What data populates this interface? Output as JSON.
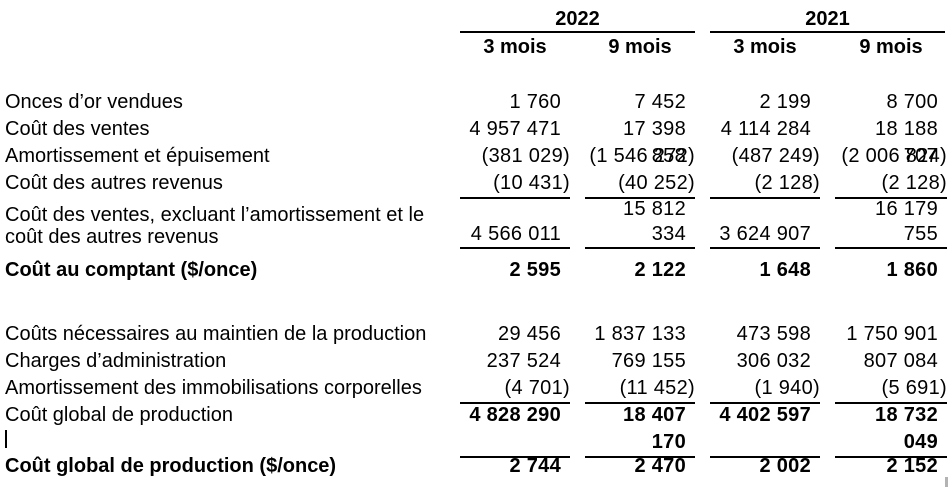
{
  "colors": {
    "text": "#000000",
    "background": "#ffffff",
    "rule": "#000000",
    "scrollbar_mark": "#b3b3b3"
  },
  "table": {
    "col_groups": [
      {
        "label": "2022"
      },
      {
        "label": "2021"
      }
    ],
    "sub_headers": [
      "3 mois",
      "9 mois",
      "3 mois",
      "9 mois"
    ],
    "rows": [
      {
        "label": "Onces d’or vendues",
        "values": [
          "1 760",
          "7 452",
          "2 199",
          "8 700"
        ]
      },
      {
        "label": "Coût des ventes",
        "values": [
          "4 957 471",
          "17 398 858",
          "4 114 284",
          "18 188 707"
        ]
      },
      {
        "label": "Amortissement et épuisement",
        "values": [
          "(381 029)",
          "(1 546 272)",
          "(487 249)",
          "(2 006 824)"
        ]
      },
      {
        "label": "Coût des autres revenus",
        "values": [
          "(10 431)",
          "(40 252)",
          "(2 128)",
          "(2 128)"
        ],
        "underline": true
      },
      {
        "label": "Coût des ventes, excluant l’amortissement et le coût des autres revenus",
        "values": [
          "4 566 011",
          "15 812 334",
          "3 624 907",
          "16 179 755"
        ],
        "underline": true,
        "tall": true
      },
      {
        "spacer": 12
      },
      {
        "label": "Coût au comptant ($/once)",
        "values": [
          "2 595",
          "2 122",
          "1 648",
          "1 860"
        ],
        "bold_label": true,
        "bold_values": true
      },
      {
        "spacer": 37
      },
      {
        "label": "Coûts nécessaires au maintien de la production",
        "values": [
          "29 456",
          "1 837 133",
          "473 598",
          "1 750 901"
        ]
      },
      {
        "label": "Charges d’administration",
        "values": [
          "237 524",
          "769 155",
          "306 032",
          "807 084"
        ]
      },
      {
        "label": "Amortissement des immobilisations corporelles",
        "values": [
          "(4 701)",
          "(11 452)",
          "(1 940)",
          "(5 691)"
        ],
        "underline": true
      },
      {
        "label": "Coût global de production",
        "values": [
          "4 828 290",
          "18 407 170",
          "4 402 597",
          "18 732 049"
        ],
        "bold_values": true,
        "underline": true
      },
      {
        "cursor": true
      },
      {
        "label": "Coût global de production ($/once)",
        "values": [
          "2 744",
          "2 470",
          "2 002",
          "2 152"
        ],
        "bold_label": true,
        "bold_values": true
      }
    ]
  }
}
